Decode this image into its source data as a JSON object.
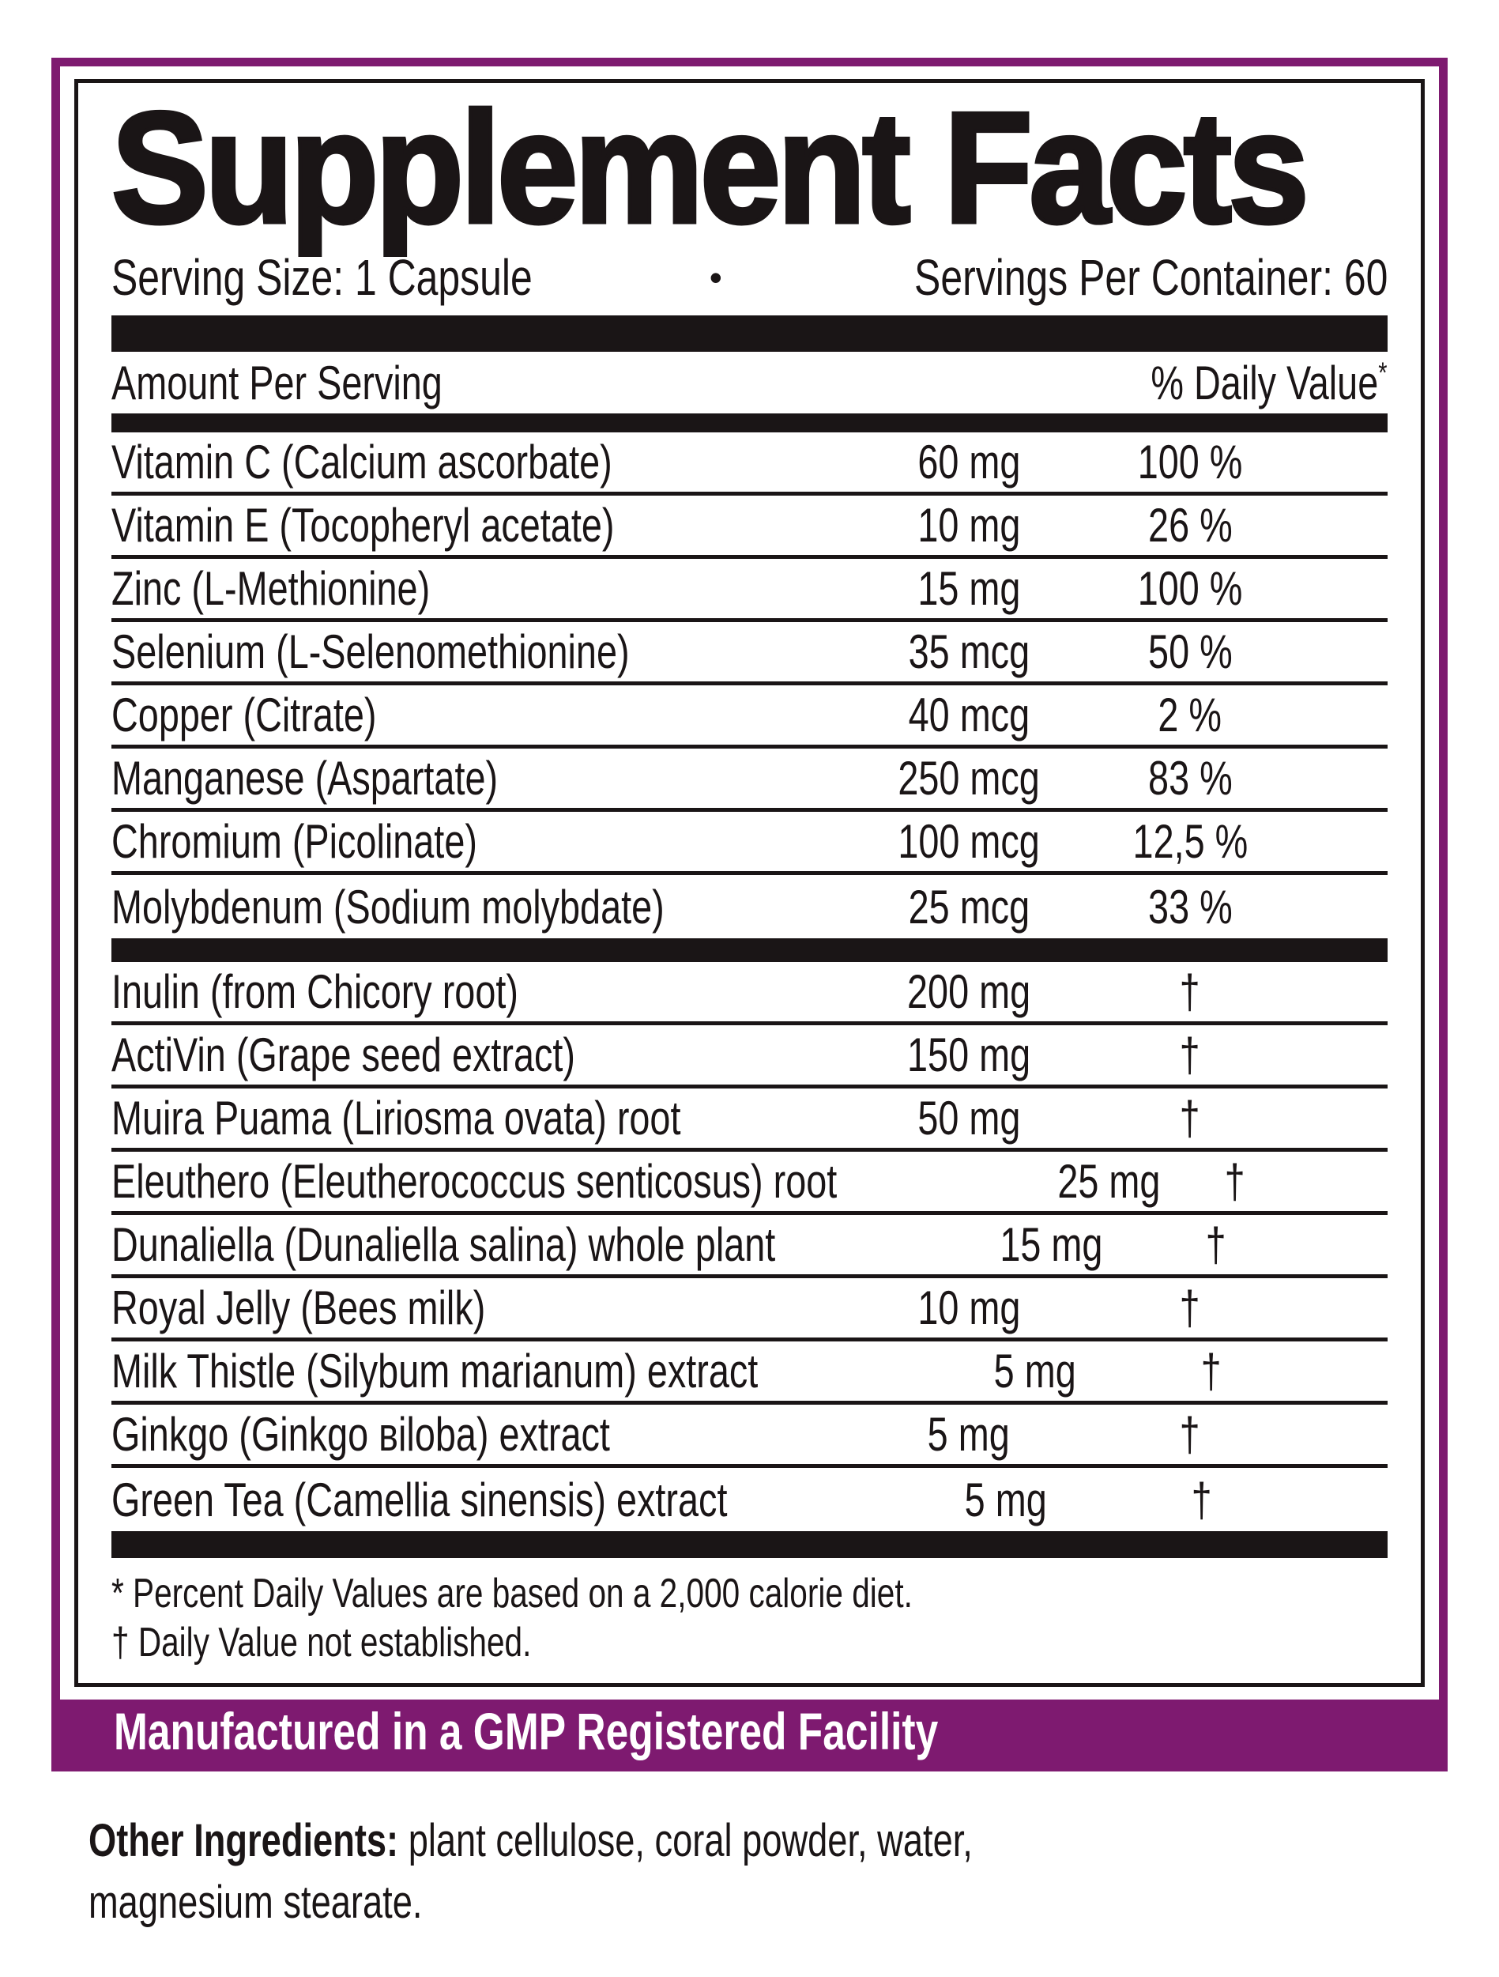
{
  "title": "Supplement Facts",
  "serving": {
    "size": "Serving Size: 1 Capsule",
    "bullet": "•",
    "per_container": "Servings Per Container: 60"
  },
  "table": {
    "header_left": "Amount Per Serving",
    "header_right": "% Daily Value",
    "header_right_sup": "*",
    "section1": [
      {
        "name": "Vitamin C (Calcium ascorbate)",
        "amount": "60 mg",
        "dv": "100 %"
      },
      {
        "name": "Vitamin E (Tocopheryl acetate)",
        "amount": "10 mg",
        "dv": "26 %"
      },
      {
        "name": "Zinc (L-Methionine)",
        "amount": "15 mg",
        "dv": "100 %"
      },
      {
        "name": "Selenium (L-Selenomethionine)",
        "amount": "35 mcg",
        "dv": "50 %"
      },
      {
        "name": "Copper (Citrate)",
        "amount": "40 mcg",
        "dv": "2 %"
      },
      {
        "name": "Manganese (Aspartate)",
        "amount": "250 mcg",
        "dv": "83 %"
      },
      {
        "name": "Chromium (Picolinate)",
        "amount": "100 mcg",
        "dv": "12,5 %"
      },
      {
        "name": "Molybdenum (Sodium molybdate)",
        "amount": "25 mcg",
        "dv": "33 %"
      }
    ],
    "section2": [
      {
        "name": "Inulin (from Chicory root)",
        "amount": "200 mg",
        "dv": "†"
      },
      {
        "name": "ActiVin (Grape seed extract)",
        "amount": "150 mg",
        "dv": "†"
      },
      {
        "name": "Muira Puama (Liriosma ovata) root",
        "amount": "50 mg",
        "dv": "†"
      },
      {
        "name": "Eleuthero (Eleutherococcus senticosus) root",
        "amount": "25 mg",
        "dv": "†"
      },
      {
        "name": "Dunaliella (Dunaliella salina) whole plant",
        "amount": "15 mg",
        "dv": "†"
      },
      {
        "name": "Royal Jelly (Bees milk)",
        "amount": "10 mg",
        "dv": "†"
      },
      {
        "name": "Milk Thistle (Silybum marianum) extract",
        "amount": "5 mg",
        "dv": "†"
      },
      {
        "name": "Ginkgo (Ginkgo вiloba) extract",
        "amount": "5 mg",
        "dv": "†"
      },
      {
        "name": "Green Tea (Camellia sinensis) extract",
        "amount": "5 mg",
        "dv": "†"
      }
    ]
  },
  "footnotes": {
    "line1": "* Percent Daily Values are based on a 2,000 calorie diet.",
    "line2": "† Daily Value not established."
  },
  "banner": "Manufactured in a GMP Registered Facility",
  "other_ingredients": {
    "label": "Other Ingredients:",
    "line1": " plant cellulose, coral powder, water,",
    "line2": "magnesium stearate."
  },
  "colors": {
    "purple": "#7e1a70",
    "ink": "#1a1516"
  }
}
